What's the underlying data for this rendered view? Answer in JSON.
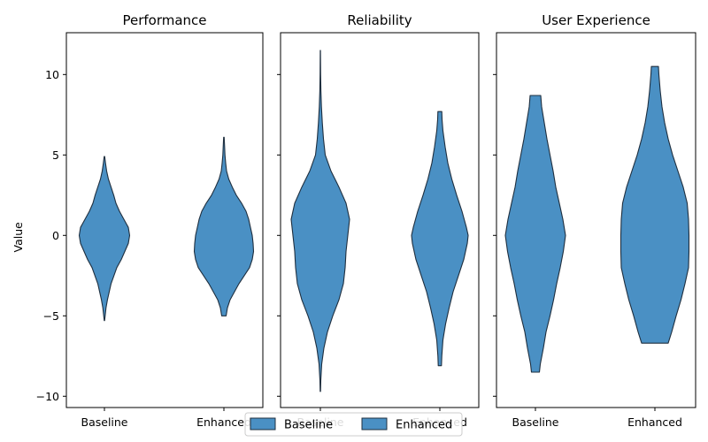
{
  "chart_data": {
    "type": "violin",
    "ylabel": "Value",
    "ylim": [
      -10.7,
      12.6
    ],
    "yticks": [
      -10,
      -5,
      0,
      5,
      10
    ],
    "categories": [
      "Baseline",
      "Enhanced"
    ],
    "color": "#4a90c4",
    "edge_color": "#1f2f3f",
    "legend": {
      "placement": "bottom-center",
      "entries": [
        "Baseline",
        "Enhanced"
      ]
    },
    "panels": [
      {
        "title": "Performance",
        "violins": [
          {
            "category": "Baseline",
            "min": -5.3,
            "max": 4.9,
            "profile": [
              [
                -5.3,
                0.2
              ],
              [
                -5.0,
                0.8
              ],
              [
                -4.5,
                1.8
              ],
              [
                -4.0,
                3.4
              ],
              [
                -3.0,
                7.5
              ],
              [
                -2.0,
                14
              ],
              [
                -1.5,
                19
              ],
              [
                -1.0,
                23
              ],
              [
                -0.5,
                27
              ],
              [
                0.0,
                28.5
              ],
              [
                0.5,
                27
              ],
              [
                1.0,
                22
              ],
              [
                1.5,
                17
              ],
              [
                2.0,
                13
              ],
              [
                2.5,
                10.5
              ],
              [
                3.0,
                7.5
              ],
              [
                3.5,
                4.5
              ],
              [
                4.0,
                2.5
              ],
              [
                4.5,
                1.2
              ],
              [
                4.9,
                0.3
              ]
            ]
          },
          {
            "category": "Enhanced",
            "min": -5.0,
            "max": 6.1,
            "profile": [
              [
                -5.0,
                2.5
              ],
              [
                -4.5,
                4
              ],
              [
                -4.0,
                7
              ],
              [
                -3.5,
                12
              ],
              [
                -3.0,
                17
              ],
              [
                -2.5,
                23
              ],
              [
                -2.0,
                29
              ],
              [
                -1.5,
                32
              ],
              [
                -1.0,
                33.5
              ],
              [
                -0.5,
                33
              ],
              [
                0.0,
                32
              ],
              [
                0.5,
                30
              ],
              [
                1.0,
                28
              ],
              [
                1.5,
                25
              ],
              [
                2.0,
                20
              ],
              [
                2.5,
                14
              ],
              [
                3.0,
                9.5
              ],
              [
                3.5,
                5.5
              ],
              [
                4.0,
                3
              ],
              [
                4.5,
                2
              ],
              [
                5.0,
                1.2
              ],
              [
                5.5,
                0.8
              ],
              [
                6.1,
                0.3
              ]
            ]
          }
        ]
      },
      {
        "title": "Reliability",
        "violins": [
          {
            "category": "Baseline",
            "min": -9.7,
            "max": 11.5,
            "profile": [
              [
                -9.7,
                0.2
              ],
              [
                -9.0,
                0.5
              ],
              [
                -8.0,
                1.5
              ],
              [
                -7.0,
                4
              ],
              [
                -6.0,
                8
              ],
              [
                -5.0,
                14
              ],
              [
                -4.0,
                21
              ],
              [
                -3.0,
                26
              ],
              [
                -2.0,
                28
              ],
              [
                -1.0,
                29
              ],
              [
                0.0,
                31
              ],
              [
                1.0,
                33
              ],
              [
                2.0,
                29
              ],
              [
                3.0,
                21
              ],
              [
                4.0,
                12
              ],
              [
                5.0,
                5.5
              ],
              [
                6.0,
                3.5
              ],
              [
                7.0,
                2.2
              ],
              [
                8.0,
                1.2
              ],
              [
                9.0,
                0.6
              ],
              [
                10.0,
                0.3
              ],
              [
                11.5,
                0.1
              ]
            ]
          },
          {
            "category": "Enhanced",
            "min": -8.1,
            "max": 7.7,
            "profile": [
              [
                -8.1,
                1.8
              ],
              [
                -7.5,
                2.2
              ],
              [
                -6.5,
                3.5
              ],
              [
                -5.5,
                6.5
              ],
              [
                -4.5,
                10.5
              ],
              [
                -3.5,
                15
              ],
              [
                -2.5,
                21
              ],
              [
                -1.5,
                27
              ],
              [
                -0.5,
                31
              ],
              [
                0.0,
                32
              ],
              [
                0.5,
                30
              ],
              [
                1.5,
                25
              ],
              [
                2.5,
                19
              ],
              [
                3.5,
                13.5
              ],
              [
                4.5,
                9
              ],
              [
                5.5,
                6
              ],
              [
                6.5,
                3.5
              ],
              [
                7.2,
                2.5
              ],
              [
                7.7,
                2.2
              ]
            ]
          }
        ]
      },
      {
        "title": "User Experience",
        "violins": [
          {
            "category": "Baseline",
            "min": -8.5,
            "max": 8.7,
            "profile": [
              [
                -8.5,
                4.5
              ],
              [
                -8.0,
                5.5
              ],
              [
                -7.0,
                9
              ],
              [
                -6.0,
                12
              ],
              [
                -5.0,
                16.5
              ],
              [
                -4.0,
                20.5
              ],
              [
                -3.0,
                24
              ],
              [
                -2.0,
                28
              ],
              [
                -1.0,
                31.5
              ],
              [
                0.0,
                34
              ],
              [
                1.0,
                31
              ],
              [
                2.0,
                27
              ],
              [
                3.0,
                23
              ],
              [
                4.0,
                20
              ],
              [
                5.0,
                16.5
              ],
              [
                6.0,
                13
              ],
              [
                7.0,
                10
              ],
              [
                8.0,
                7
              ],
              [
                8.7,
                6
              ]
            ]
          },
          {
            "category": "Enhanced",
            "min": -6.7,
            "max": 10.5,
            "profile": [
              [
                -6.7,
                15
              ],
              [
                -6.0,
                19
              ],
              [
                -5.0,
                24
              ],
              [
                -4.0,
                29.5
              ],
              [
                -3.0,
                34
              ],
              [
                -2.0,
                38
              ],
              [
                -1.0,
                38.5
              ],
              [
                0.0,
                38.5
              ],
              [
                1.0,
                38
              ],
              [
                2.0,
                36.5
              ],
              [
                3.0,
                32
              ],
              [
                4.0,
                26
              ],
              [
                5.0,
                20
              ],
              [
                6.0,
                15
              ],
              [
                7.0,
                11
              ],
              [
                8.0,
                8
              ],
              [
                9.0,
                6
              ],
              [
                10.0,
                4.5
              ],
              [
                10.5,
                4
              ]
            ]
          }
        ]
      }
    ]
  }
}
